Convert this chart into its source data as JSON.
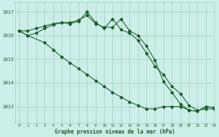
{
  "title": "Graphe pression niveau de la mer (hPa)",
  "background_color": "#cceee8",
  "grid_color": "#99ccbb",
  "line_color": "#1a5c2a",
  "xlim": [
    -0.5,
    23
  ],
  "ylim": [
    1012.3,
    1017.4
  ],
  "yticks": [
    1013,
    1014,
    1015,
    1016,
    1017
  ],
  "xticks": [
    0,
    1,
    2,
    3,
    4,
    5,
    6,
    7,
    8,
    9,
    10,
    11,
    12,
    13,
    14,
    15,
    16,
    17,
    18,
    19,
    20,
    21,
    22,
    23
  ],
  "series1_x": [
    0,
    1,
    2,
    3,
    4,
    5,
    6,
    7,
    8,
    9,
    10,
    11,
    12,
    13,
    14,
    15,
    16,
    17,
    18,
    19,
    20,
    21,
    22,
    23
  ],
  "series1": [
    1016.2,
    1016.0,
    1016.1,
    1016.3,
    1016.45,
    1016.55,
    1016.5,
    1016.6,
    1017.0,
    1016.55,
    1016.3,
    1016.7,
    1016.25,
    1016.1,
    1015.8,
    1015.25,
    1014.7,
    1014.35,
    1013.85,
    1013.55,
    1013.05,
    1012.85,
    1012.9,
    1012.9
  ],
  "series2_x": [
    0,
    1,
    2,
    3,
    4,
    5,
    6,
    7,
    8,
    9,
    10,
    11,
    12,
    13,
    14,
    15,
    16,
    17,
    18,
    19,
    20,
    21,
    22,
    23
  ],
  "series2": [
    1016.2,
    1016.2,
    1016.3,
    1016.4,
    1016.5,
    1016.55,
    1016.55,
    1016.65,
    1016.85,
    1016.5,
    1016.35,
    1016.35,
    1016.7,
    1016.2,
    1016.0,
    1015.55,
    1014.95,
    1014.05,
    1013.6,
    1013.1,
    1012.85,
    1012.8,
    1013.0,
    1012.95
  ],
  "series3_x": [
    0,
    1,
    3,
    4,
    5,
    6,
    7,
    8,
    9,
    10,
    11,
    12,
    13,
    14,
    15,
    16,
    17,
    18,
    19,
    20,
    21,
    22,
    23
  ],
  "series3": [
    1016.2,
    1016.0,
    1015.7,
    1015.4,
    1015.1,
    1014.85,
    1014.6,
    1014.35,
    1014.1,
    1013.85,
    1013.6,
    1013.4,
    1013.2,
    1013.05,
    1012.9,
    1012.9,
    1013.0,
    1013.0,
    1013.0,
    1012.85,
    1012.8,
    1013.0,
    1012.95
  ]
}
